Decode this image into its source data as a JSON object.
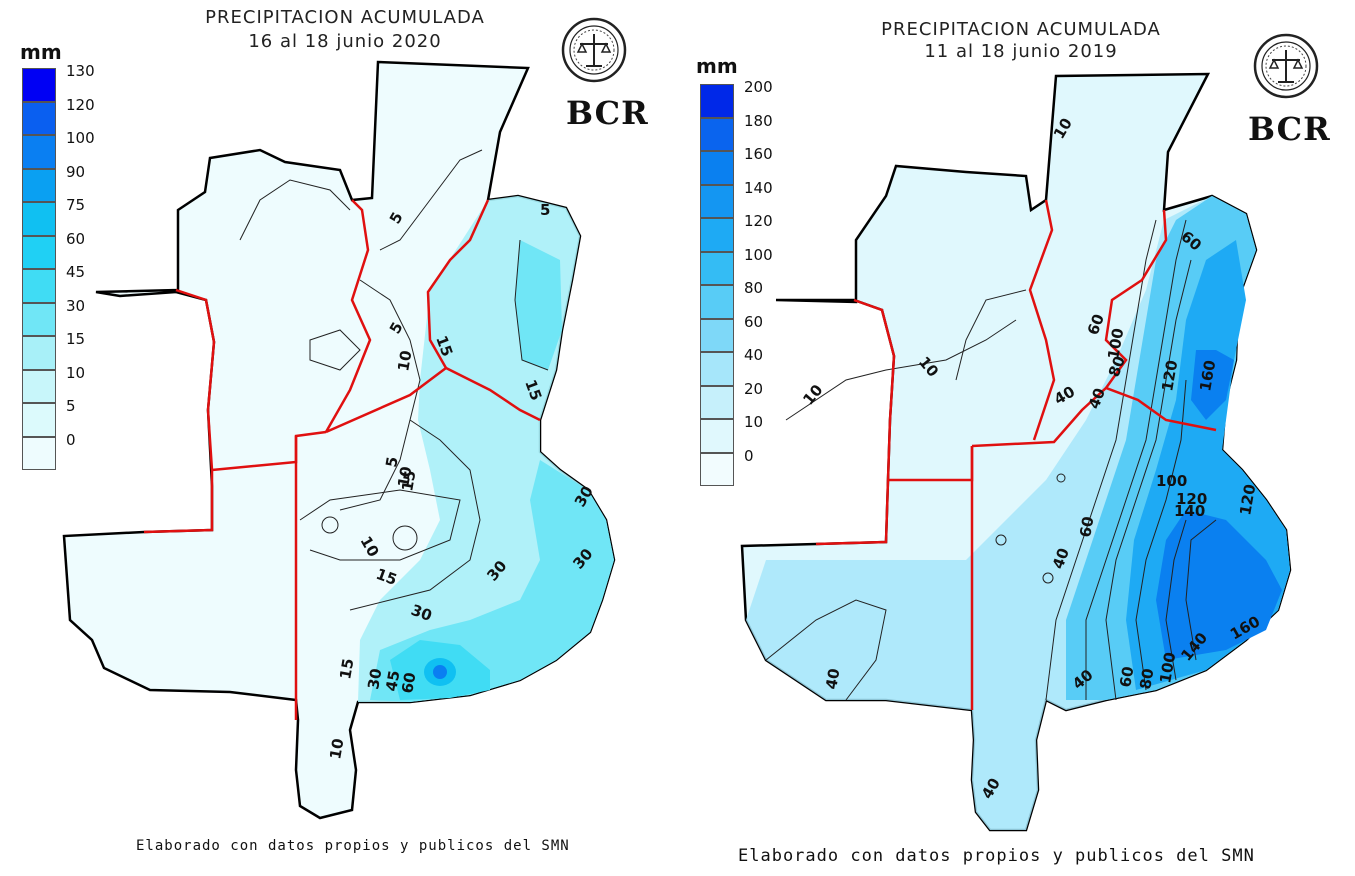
{
  "left_map": {
    "title": "PRECIPITACION ACUMULADA",
    "period": "16 al 18 junio 2020",
    "unit": "mm",
    "legend": [
      {
        "label": "130",
        "color": "#0000f4"
      },
      {
        "label": "120",
        "color": "#0a5ff0"
      },
      {
        "label": "100",
        "color": "#0a7ff2"
      },
      {
        "label": "90",
        "color": "#0aa0f2"
      },
      {
        "label": "75",
        "color": "#10c0f2"
      },
      {
        "label": "60",
        "color": "#20d0f4"
      },
      {
        "label": "45",
        "color": "#40dcf4"
      },
      {
        "label": "30",
        "color": "#70e6f6"
      },
      {
        "label": "15",
        "color": "#a8f0f8"
      },
      {
        "label": "10",
        "color": "#c8f6fa"
      },
      {
        "label": "5",
        "color": "#dcfafc"
      },
      {
        "label": "0",
        "color": "#eefcfe"
      }
    ],
    "contour_labels": [
      "5",
      "5",
      "5",
      "5",
      "10",
      "10",
      "10",
      "10",
      "15",
      "15",
      "15",
      "15",
      "15",
      "30",
      "30",
      "30",
      "30",
      "30",
      "45",
      "60"
    ],
    "logo_text": "BCR",
    "credit": "Elaborado con datos propios y publicos del SMN"
  },
  "right_map": {
    "title": "PRECIPITACION  ACUMULADA",
    "period": "11  al  18  junio  2019",
    "unit": "mm",
    "legend": [
      {
        "label": "200",
        "color": "#0028e8"
      },
      {
        "label": "180",
        "color": "#0a64ee"
      },
      {
        "label": "160",
        "color": "#0a80f0"
      },
      {
        "label": "140",
        "color": "#1496f2"
      },
      {
        "label": "120",
        "color": "#1eaaf4"
      },
      {
        "label": "100",
        "color": "#34bcf4"
      },
      {
        "label": "80",
        "color": "#58ccf6"
      },
      {
        "label": "60",
        "color": "#7ed8f8"
      },
      {
        "label": "40",
        "color": "#a6e6fa"
      },
      {
        "label": "20",
        "color": "#c6f0fb"
      },
      {
        "label": "10",
        "color": "#e0f8fd"
      },
      {
        "label": "0",
        "color": "#f2fcfe"
      }
    ],
    "contour_labels": [
      "10",
      "10",
      "10",
      "40",
      "40",
      "40",
      "40",
      "40",
      "40",
      "60",
      "60",
      "60",
      "60",
      "80",
      "80",
      "100",
      "100",
      "100",
      "120",
      "120",
      "120",
      "140",
      "140",
      "160",
      "160"
    ],
    "logo_text": "BCR",
    "credit": "Elaborado con datos propios y publicos del SMN"
  }
}
